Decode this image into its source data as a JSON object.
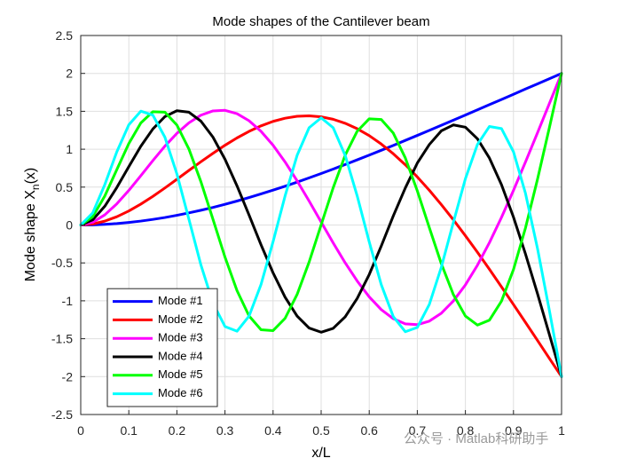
{
  "chart_data": {
    "type": "line",
    "title": "Mode shapes of the Cantilever beam",
    "xlabel": "x/L",
    "ylabel": [
      "Mode shape X",
      "n",
      "(x)"
    ],
    "watermark": "公众号 · Matlab科研助手",
    "x": [
      0,
      0.025,
      0.05,
      0.075,
      0.1,
      0.125,
      0.15,
      0.175,
      0.2,
      0.225,
      0.25,
      0.275,
      0.3,
      0.325,
      0.35,
      0.375,
      0.4,
      0.425,
      0.45,
      0.475,
      0.5,
      0.525,
      0.55,
      0.575,
      0.6,
      0.625,
      0.65,
      0.675,
      0.7,
      0.725,
      0.75,
      0.775,
      0.8,
      0.825,
      0.85,
      0.875,
      0.9,
      0.925,
      0.95,
      0.975,
      1
    ],
    "series": [
      {
        "name": "Mode #1",
        "color": "#0000ff",
        "values": [
          0,
          0.002,
          0.009,
          0.019,
          0.034,
          0.052,
          0.074,
          0.099,
          0.128,
          0.16,
          0.195,
          0.232,
          0.273,
          0.316,
          0.362,
          0.41,
          0.46,
          0.512,
          0.566,
          0.622,
          0.679,
          0.738,
          0.798,
          0.86,
          0.922,
          0.986,
          1.05,
          1.116,
          1.182,
          1.248,
          1.316,
          1.383,
          1.451,
          1.519,
          1.588,
          1.656,
          1.725,
          1.794,
          1.862,
          1.931,
          2
        ]
      },
      {
        "name": "Mode #2",
        "color": "#ff0000",
        "values": [
          0,
          0.013,
          0.051,
          0.109,
          0.185,
          0.276,
          0.378,
          0.488,
          0.603,
          0.72,
          0.835,
          0.946,
          1.052,
          1.149,
          1.235,
          1.308,
          1.367,
          1.409,
          1.434,
          1.44,
          1.427,
          1.395,
          1.342,
          1.27,
          1.179,
          1.068,
          0.94,
          0.795,
          0.634,
          0.458,
          0.269,
          0.069,
          -0.141,
          -0.359,
          -0.584,
          -0.815,
          -1.049,
          -1.285,
          -1.523,
          -1.763,
          -2
        ]
      },
      {
        "name": "Mode #3",
        "color": "#ff00ff",
        "values": [
          0,
          0.036,
          0.134,
          0.279,
          0.456,
          0.651,
          0.85,
          1.04,
          1.209,
          1.348,
          1.449,
          1.505,
          1.513,
          1.469,
          1.376,
          1.235,
          1.052,
          0.832,
          0.583,
          0.316,
          0.04,
          -0.236,
          -0.499,
          -0.739,
          -0.948,
          -1.116,
          -1.236,
          -1.304,
          -1.315,
          -1.268,
          -1.163,
          -1.002,
          -0.79,
          -0.531,
          -0.232,
          0.1,
          0.457,
          0.832,
          1.217,
          1.608,
          2
        ]
      },
      {
        "name": "Mode #4",
        "color": "#000000",
        "values": [
          0,
          0.069,
          0.247,
          0.494,
          0.77,
          1.039,
          1.267,
          1.43,
          1.508,
          1.488,
          1.37,
          1.159,
          0.868,
          0.517,
          0.132,
          -0.261,
          -0.631,
          -0.952,
          -1.201,
          -1.359,
          -1.414,
          -1.363,
          -1.211,
          -0.968,
          -0.653,
          -0.277,
          0.119,
          0.488,
          0.817,
          1.062,
          1.243,
          1.32,
          1.29,
          1.138,
          0.883,
          0.533,
          0.104,
          -0.383,
          -0.907,
          -1.451,
          -2
        ]
      },
      {
        "name": "Mode #5",
        "color": "#00ff00",
        "values": [
          0,
          0.11,
          0.382,
          0.73,
          1.074,
          1.347,
          1.495,
          1.489,
          1.319,
          1.002,
          0.57,
          0.076,
          -0.423,
          -0.865,
          -1.199,
          -1.382,
          -1.393,
          -1.231,
          -0.916,
          -0.488,
          0.002,
          0.491,
          0.921,
          1.237,
          1.401,
          1.392,
          1.213,
          0.886,
          0.451,
          -0.035,
          -0.512,
          -0.918,
          -1.201,
          -1.32,
          -1.255,
          -1.005,
          -0.588,
          -0.038,
          0.604,
          1.294,
          2
        ]
      },
      {
        "name": "Mode #6",
        "color": "#00ffff",
        "values": [
          0,
          0.16,
          0.532,
          0.965,
          1.322,
          1.502,
          1.45,
          1.159,
          0.674,
          0.076,
          -0.528,
          -1.03,
          -1.339,
          -1.401,
          -1.203,
          -0.784,
          -0.22,
          0.384,
          0.919,
          1.284,
          1.414,
          1.284,
          0.918,
          0.383,
          -0.222,
          -0.787,
          -1.208,
          -1.408,
          -1.351,
          -1.047,
          -0.555,
          0.035,
          0.61,
          1.062,
          1.3,
          1.272,
          0.966,
          0.417,
          -0.311,
          -1.139,
          -2
        ]
      }
    ],
    "xlim": [
      0,
      1
    ],
    "xticks": [
      0,
      0.1,
      0.2,
      0.3,
      0.4,
      0.5,
      0.6,
      0.7,
      0.8,
      0.9,
      1
    ],
    "ylim": [
      -2.5,
      2.5
    ],
    "yticks": [
      -2.5,
      -2,
      -1.5,
      -1,
      -0.5,
      0,
      0.5,
      1,
      1.5,
      2,
      2.5
    ],
    "grid": true,
    "legend": "lower left"
  }
}
